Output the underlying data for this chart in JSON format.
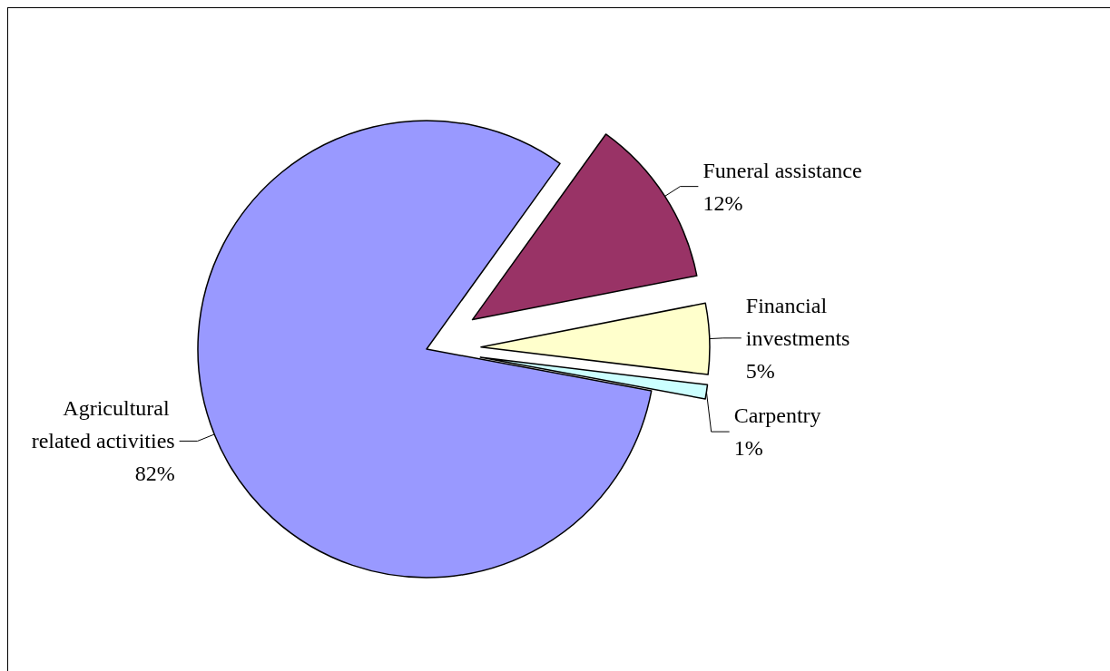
{
  "chart_data": {
    "type": "pie",
    "categories": [
      "Funeral assistance",
      "Financial investments",
      "Carpentry",
      "Agricultural related activities"
    ],
    "values": [
      12,
      5,
      1,
      82
    ],
    "value_labels": [
      "12%",
      "5%",
      "1%",
      "82%"
    ],
    "colors": [
      "#993366",
      "#ffffcc",
      "#ccffff",
      "#9999ff"
    ],
    "legend": false
  }
}
